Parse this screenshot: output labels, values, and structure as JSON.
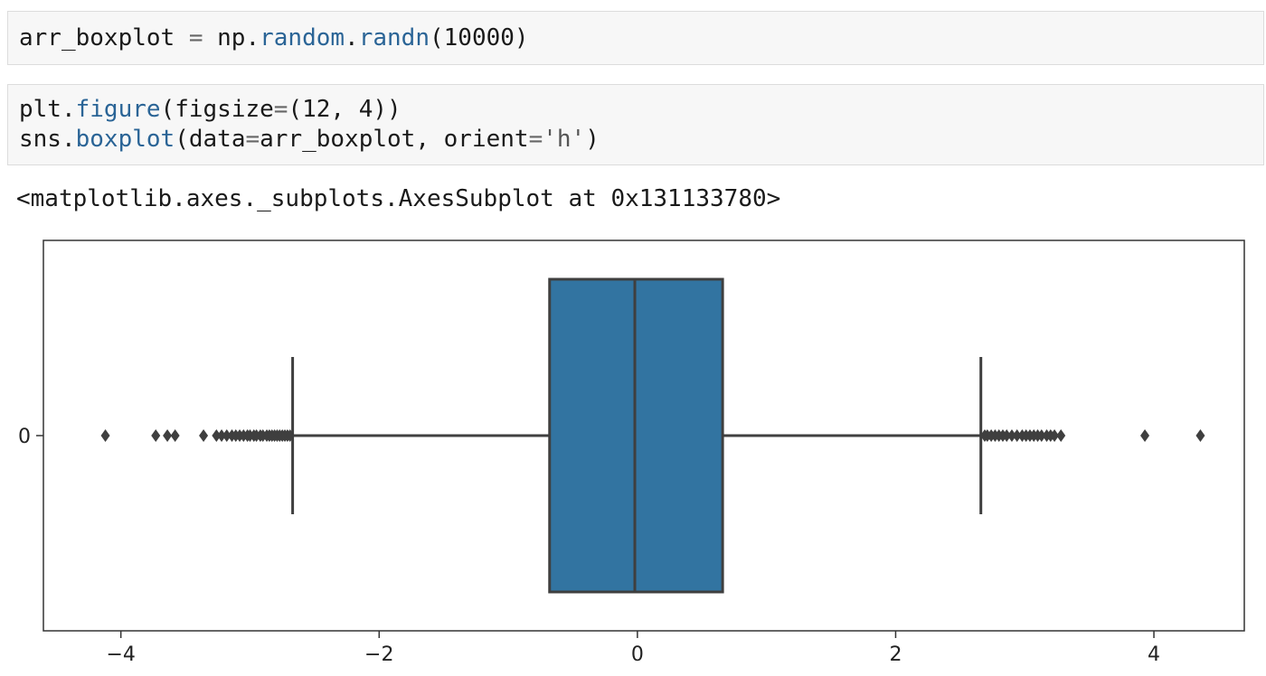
{
  "cells": [
    {
      "tokens": [
        {
          "t": "arr_boxplot ",
          "c": ""
        },
        {
          "t": "=",
          "c": "tok-op"
        },
        {
          "t": " np.",
          "c": ""
        },
        {
          "t": "random",
          "c": "tok-fn"
        },
        {
          "t": ".",
          "c": ""
        },
        {
          "t": "randn",
          "c": "tok-fn"
        },
        {
          "t": "(10000)",
          "c": ""
        }
      ]
    },
    {
      "lines": [
        [
          {
            "t": "plt.",
            "c": ""
          },
          {
            "t": "figure",
            "c": "tok-fn"
          },
          {
            "t": "(figsize",
            "c": ""
          },
          {
            "t": "=",
            "c": "tok-op"
          },
          {
            "t": "(12, 4))",
            "c": ""
          }
        ],
        [
          {
            "t": "sns.",
            "c": ""
          },
          {
            "t": "boxplot",
            "c": "tok-fn"
          },
          {
            "t": "(data",
            "c": ""
          },
          {
            "t": "=",
            "c": "tok-op"
          },
          {
            "t": "arr_boxplot, orient",
            "c": ""
          },
          {
            "t": "=",
            "c": "tok-op"
          },
          {
            "t": "'h'",
            "c": "tok-str"
          },
          {
            "t": ")",
            "c": ""
          }
        ]
      ]
    }
  ],
  "output_text": "<matplotlib.axes._subplots.AxesSubplot at 0x131133780>",
  "chart_data": {
    "type": "boxplot",
    "orient": "h",
    "xlim": [
      -4.6,
      4.7
    ],
    "xticks": [
      -4,
      -2,
      0,
      2,
      4
    ],
    "xtick_labels": [
      "−4",
      "−2",
      "0",
      "2",
      "4"
    ],
    "ytick_labels": [
      "0"
    ],
    "grid": false,
    "box": {
      "color": "#3274a1",
      "q1": -0.68,
      "median": -0.02,
      "q3": 0.66,
      "whisker_low": -2.67,
      "whisker_high": 2.66
    },
    "outliers": [
      -4.12,
      -3.73,
      -3.64,
      -3.58,
      -3.36,
      -3.26,
      -3.22,
      -3.18,
      -3.14,
      -3.11,
      -3.08,
      -3.05,
      -3.02,
      -3.0,
      -2.97,
      -2.95,
      -2.92,
      -2.9,
      -2.87,
      -2.85,
      -2.83,
      -2.81,
      -2.79,
      -2.77,
      -2.75,
      -2.73,
      -2.71,
      -2.69,
      2.69,
      2.71,
      2.74,
      2.77,
      2.8,
      2.83,
      2.86,
      2.9,
      2.94,
      2.98,
      3.01,
      3.04,
      3.07,
      3.1,
      3.13,
      3.17,
      3.2,
      3.23,
      3.28,
      3.93,
      4.36
    ]
  }
}
